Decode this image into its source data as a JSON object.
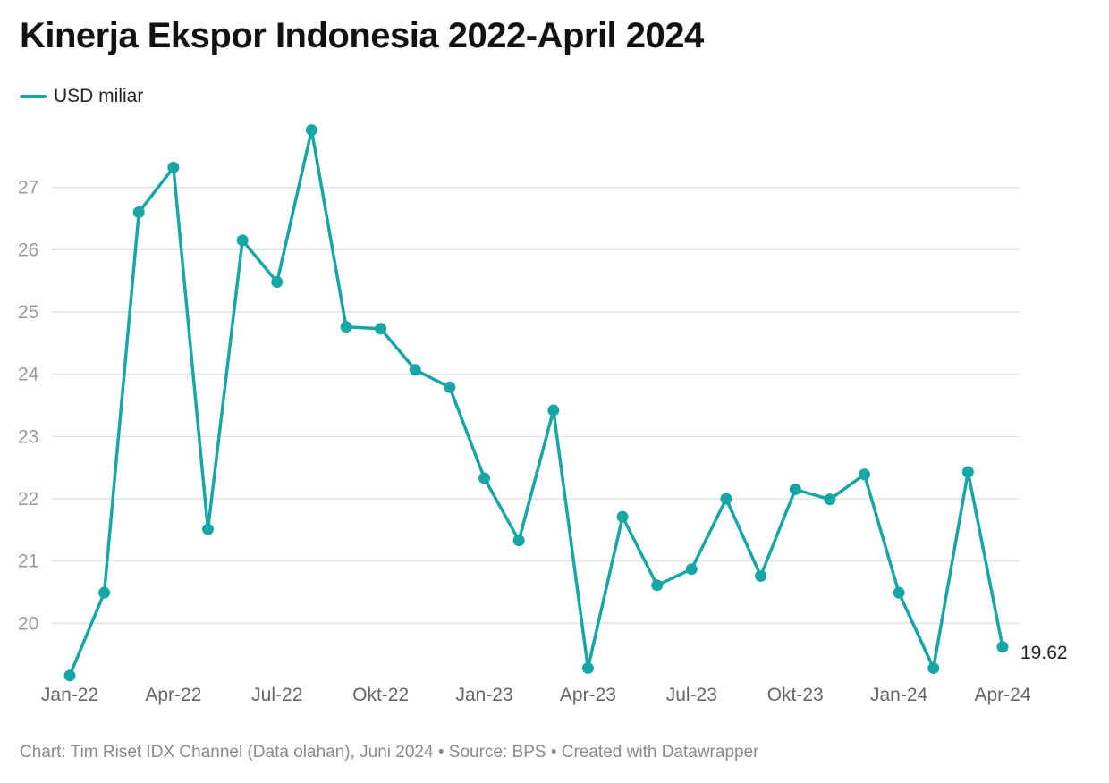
{
  "title": "Kinerja Ekspor Indonesia 2022-April 2024",
  "footer": {
    "text": "Chart: Tim Riset IDX Channel (Data olahan), Juni 2024 • Source: BPS • Created with Datawrapper"
  },
  "colors": {
    "series": "#16a6a6",
    "grid": "#e2e2e2"
  },
  "chart_data": {
    "type": "line",
    "title": "Kinerja Ekspor Indonesia 2022-April 2024",
    "xlabel": "",
    "ylabel": "",
    "x": [
      "Jan-22",
      "Feb-22",
      "Mar-22",
      "Apr-22",
      "Mei-22",
      "Jun-22",
      "Jul-22",
      "Agu-22",
      "Sep-22",
      "Okt-22",
      "Nov-22",
      "Des-22",
      "Jan-23",
      "Feb-23",
      "Mar-23",
      "Apr-23",
      "Mei-23",
      "Jun-23",
      "Jul-23",
      "Agu-23",
      "Sep-23",
      "Okt-23",
      "Nov-23",
      "Des-23",
      "Jan-24",
      "Feb-24",
      "Mar-24",
      "Apr-24"
    ],
    "x_tick_labels": [
      "Jan-22",
      "Apr-22",
      "Jul-22",
      "Okt-22",
      "Jan-23",
      "Apr-23",
      "Jul-23",
      "Okt-23",
      "Jan-24",
      "Apr-24"
    ],
    "series": [
      {
        "name": "USD miliar",
        "values": [
          19.16,
          20.49,
          26.6,
          27.32,
          21.51,
          26.15,
          25.48,
          27.92,
          24.76,
          24.73,
          24.07,
          23.79,
          22.33,
          21.33,
          23.42,
          19.28,
          21.71,
          20.61,
          20.87,
          22.0,
          20.76,
          22.15,
          21.99,
          22.39,
          20.49,
          19.28,
          22.43,
          19.62
        ]
      }
    ],
    "end_label": "19.62",
    "y_ticks": [
      20,
      21,
      22,
      23,
      24,
      25,
      26,
      27
    ],
    "ylim": [
      19.1,
      28.0
    ],
    "grid": true,
    "legend": "top-left"
  }
}
